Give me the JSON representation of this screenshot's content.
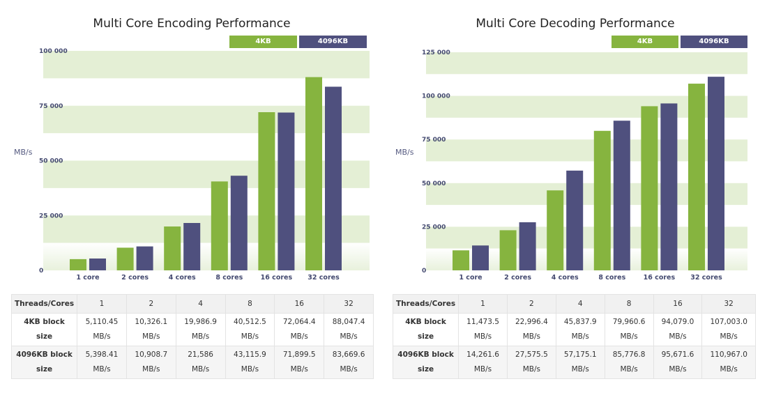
{
  "colors": {
    "s4kb": "#86b43f",
    "s4096kb": "#4f507e",
    "band": "#e4efd5"
  },
  "chart_data": [
    {
      "type": "bar",
      "title": "Multi Core Encoding Performance",
      "ylabel": "MB/s",
      "xlabel": "",
      "categories": [
        "1 core",
        "2 cores",
        "4 cores",
        "8 cores",
        "16 cores",
        "32 cores"
      ],
      "series": [
        {
          "name": "4KB",
          "values": [
            5110.45,
            10326.1,
            19986.9,
            40512.5,
            72064.4,
            88047.4
          ]
        },
        {
          "name": "4096KB",
          "values": [
            5398.41,
            10908.7,
            21586,
            43115.9,
            71899.5,
            83669.6
          ]
        }
      ],
      "ylim": [
        0,
        100000
      ],
      "yticks": [
        0,
        25000,
        50000,
        75000,
        100000
      ],
      "ytick_labels": [
        "0",
        "25 000",
        "50 000",
        "75 000",
        "100 000"
      ],
      "legend": "top-right",
      "grid": true
    },
    {
      "type": "bar",
      "title": "Multi Core Decoding Performance",
      "ylabel": "MB/s",
      "xlabel": "",
      "categories": [
        "1 core",
        "2 cores",
        "4 cores",
        "8 cores",
        "16 cores",
        "32 cores"
      ],
      "series": [
        {
          "name": "4KB",
          "values": [
            11473.5,
            22996.4,
            45837.9,
            79960.6,
            94079.0,
            107003.0
          ]
        },
        {
          "name": "4096KB",
          "values": [
            14261.6,
            27575.5,
            57175.1,
            85776.8,
            95671.6,
            110967.0
          ]
        }
      ],
      "ylim": [
        0,
        125000
      ],
      "yticks": [
        0,
        25000,
        50000,
        75000,
        100000,
        125000
      ],
      "ytick_labels": [
        "0",
        "25 000",
        "50 000",
        "75 000",
        "100 000",
        "125 000"
      ],
      "legend": "top-right",
      "grid": true
    }
  ],
  "tables": [
    {
      "header": [
        "Threads/Cores",
        "1",
        "2",
        "4",
        "8",
        "16",
        "32"
      ],
      "rows": [
        {
          "label": "4KB block size",
          "cells": [
            "5,110.45 MB/s",
            "10,326.1 MB/s",
            "19,986.9 MB/s",
            "40,512.5 MB/s",
            "72,064.4 MB/s",
            "88,047.4 MB/s"
          ]
        },
        {
          "label": "4096KB block size",
          "cells": [
            "5,398.41 MB/s",
            "10,908.7 MB/s",
            "21,586 MB/s",
            "43,115.9 MB/s",
            "71,899.5 MB/s",
            "83,669.6 MB/s"
          ]
        }
      ]
    },
    {
      "header": [
        "Threads/Cores",
        "1",
        "2",
        "4",
        "8",
        "16",
        "32"
      ],
      "rows": [
        {
          "label": "4KB block size",
          "cells": [
            "11,473.5 MB/s",
            "22,996.4 MB/s",
            "45,837.9 MB/s",
            "79,960.6 MB/s",
            "94,079.0 MB/s",
            "107,003.0 MB/s"
          ]
        },
        {
          "label": "4096KB block size",
          "cells": [
            "14,261.6 MB/s",
            "27,575.5 MB/s",
            "57,175.1 MB/s",
            "85,776.8 MB/s",
            "95,671.6 MB/s",
            "110,967.0 MB/s"
          ]
        }
      ]
    }
  ]
}
